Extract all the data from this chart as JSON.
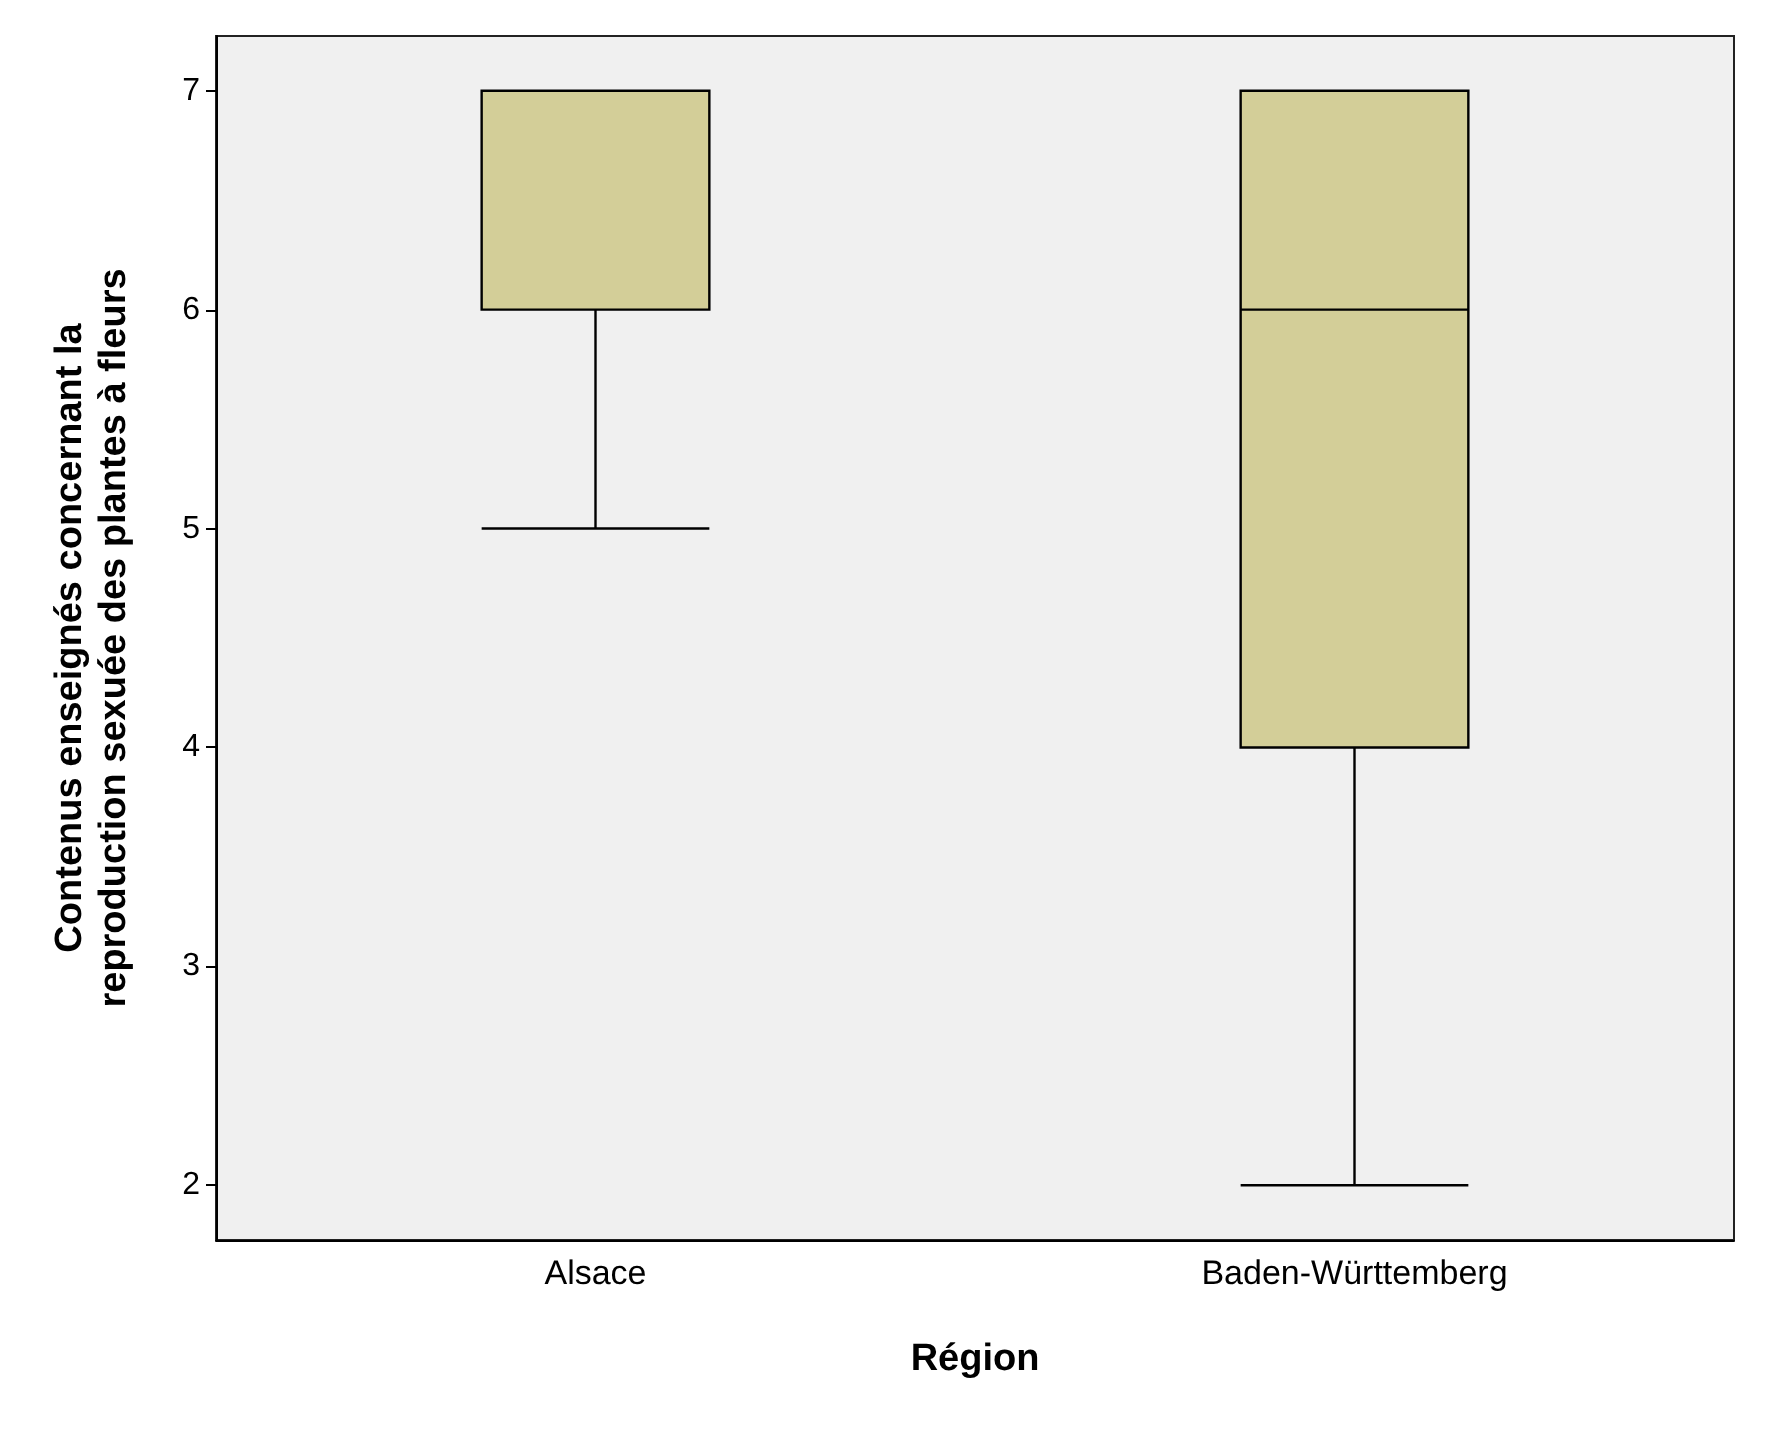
{
  "chart_data": {
    "type": "box",
    "xlabel": "Région",
    "ylabel": "Contenus enseignés concernant la\nreproduction sexuée des plantes à fleurs",
    "categories": [
      "Alsace",
      "Baden-Württemberg"
    ],
    "series": [
      {
        "color": "#d3ce98",
        "boxes": [
          {
            "low": 5,
            "q1": 6,
            "median": 7,
            "q3": 7,
            "high": 7
          },
          {
            "low": 2,
            "q1": 4,
            "median": 6,
            "q3": 7,
            "high": 7
          }
        ]
      }
    ],
    "ylim": [
      1.75,
      7.25
    ],
    "yticks": [
      2,
      3,
      4,
      5,
      6,
      7
    ],
    "grid": false
  }
}
